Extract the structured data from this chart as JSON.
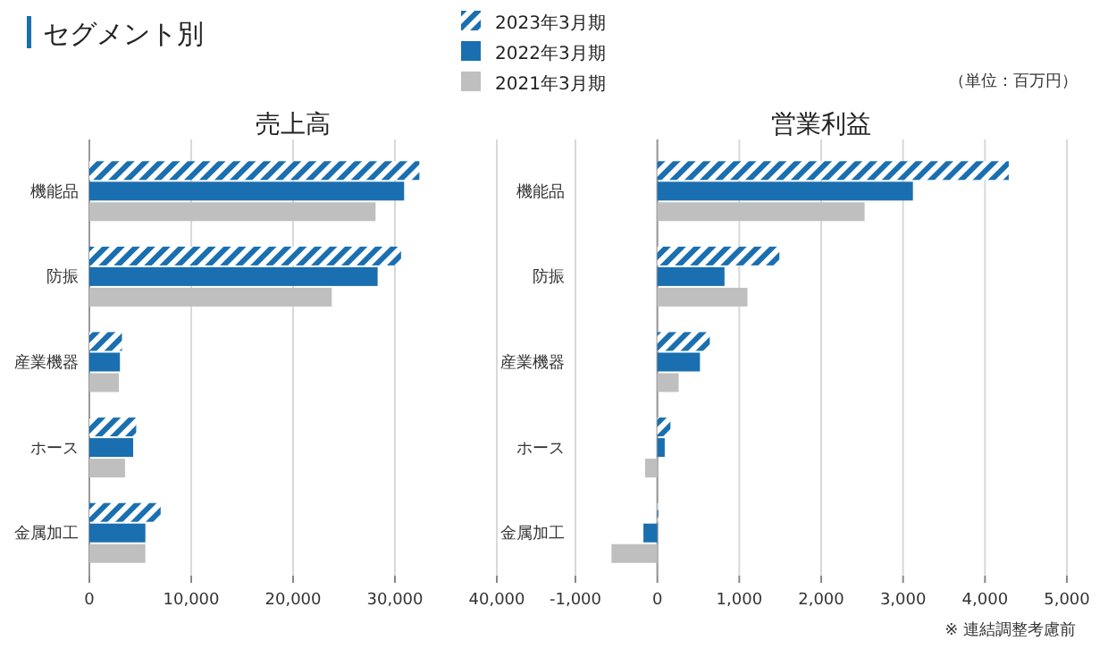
{
  "chart_data": [
    {
      "type": "other",
      "title": "セグメント別",
      "annotations": [
        "（単位：百万円）"
      ]
    },
    {
      "type": "bar",
      "orientation": "horizontal",
      "title": "売上高",
      "legend": "top",
      "grid": "x",
      "categories": [
        "機能品",
        "防振",
        "産業機器",
        "ホース",
        "金属加工"
      ],
      "series": [
        {
          "name": "2023年3月期",
          "color": "#1a6fb0",
          "values": [
            32400,
            30600,
            3200,
            4600,
            7000
          ]
        },
        {
          "name": "2022年3月期",
          "color": "#1a6fb0",
          "values": [
            30900,
            28300,
            3000,
            4300,
            5500
          ]
        },
        {
          "name": "2021年3月期",
          "color": "#bfbfbf",
          "values": [
            28100,
            23800,
            2900,
            3500,
            5500
          ]
        }
      ],
      "xlim": [
        0,
        40000
      ],
      "xticks": [
        0,
        {
          "value": 10000,
          "label": "10,000"
        },
        {
          "value": 20000,
          "label": "20,000"
        },
        {
          "value": 30000,
          "label": "30,000"
        },
        {
          "value": 40000,
          "label": "40,000"
        }
      ]
    },
    {
      "type": "bar",
      "orientation": "horizontal",
      "title": "営業利益",
      "grid": "x",
      "categories": [
        "機能品",
        "防振",
        "産業機器",
        "ホース",
        "金属加工"
      ],
      "series": [
        {
          "color": "#1a6fb0",
          "values": [
            4290,
            1490,
            640,
            160,
            10
          ]
        },
        {
          "color": "#1a6fb0",
          "values": [
            3120,
            820,
            520,
            90,
            -170
          ]
        },
        {
          "color": "#bfbfbf",
          "values": [
            2530,
            1100,
            260,
            -150,
            -560
          ]
        }
      ],
      "xlim": [
        -1000,
        5000
      ],
      "xticks": [
        {
          "value": -1000,
          "label": "-1,000"
        },
        0,
        {
          "value": 1000,
          "label": "1,000"
        },
        {
          "value": 2000,
          "label": "2,000"
        },
        {
          "value": 3000,
          "label": "3,000"
        },
        {
          "value": 4000,
          "label": "4,000"
        },
        {
          "value": 5000,
          "label": "5,000"
        }
      ],
      "annotations": [
        "※ 連結調整考慮前"
      ]
    }
  ]
}
